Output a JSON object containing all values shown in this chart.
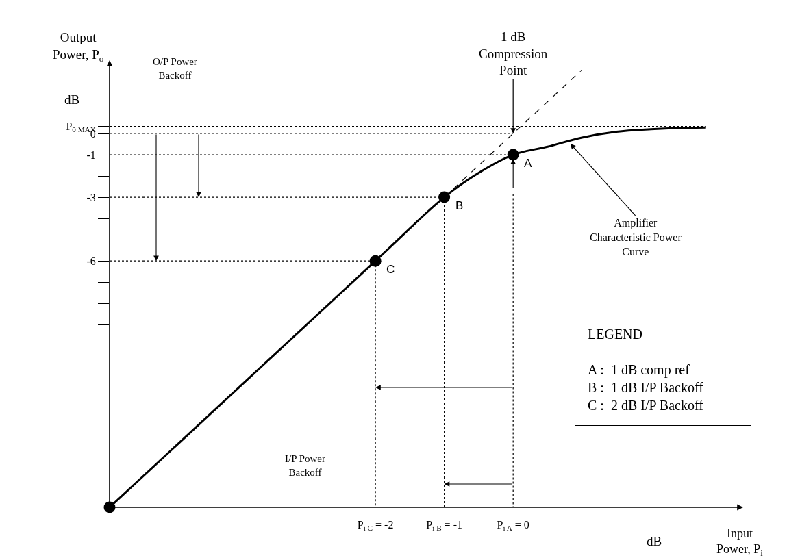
{
  "chart_data": {
    "type": "line",
    "xlabel": "Input Power, P$_{i}$",
    "ylabel": "Output Power, P$_{o}$",
    "xlim": [
      -5.86,
      3.34
    ],
    "ylim": [
      -17.6,
      3.45
    ],
    "xticks": [
      {
        "value": -2,
        "label": "P$_{i C}$ = -2"
      },
      {
        "value": -1,
        "label": "P$_{i B}$ = -1"
      },
      {
        "value": 0,
        "label": "P$_{i A}$ = 0"
      }
    ],
    "yticks": [
      {
        "value": 0.34,
        "label": "P$_{0 MAX}$"
      },
      0,
      -1,
      {
        "value": -2,
        "label": null
      },
      -3,
      {
        "value": -4,
        "label": null
      },
      {
        "value": -5,
        "label": null
      },
      -6,
      {
        "value": -7,
        "label": null
      },
      {
        "value": -8,
        "label": null
      },
      {
        "value": -9,
        "label": null
      }
    ],
    "series": [
      {
        "color": "#000000",
        "line_style": "solid",
        "x": [
          -5.86,
          -2,
          -1,
          -0.5,
          0,
          0.5,
          1,
          1.5,
          2,
          2.5,
          2.8
        ],
        "values": [
          -17.6,
          -6,
          -3,
          -1.85,
          -1,
          -0.62,
          -0.19,
          0.08,
          0.2,
          0.27,
          0.28
        ]
      },
      {
        "type": "scatter",
        "color": "#000000",
        "marker": "circle",
        "x": [
          -5.86,
          -2,
          -1,
          0
        ],
        "values": [
          -17.6,
          -6,
          -3,
          -1
        ]
      },
      {
        "color": "#000000",
        "line_style": "dashed",
        "x": [
          -1,
          1
        ],
        "values": [
          -3,
          3
        ]
      },
      {
        "color": "#000000",
        "line_style": "dotted",
        "x": [
          -5.86,
          2.8
        ],
        "values": [
          0.34,
          0.34
        ]
      },
      {
        "color": "#000000",
        "line_style": "dotted",
        "x": [
          -5.86,
          0
        ],
        "values": [
          0,
          0
        ]
      },
      {
        "color": "#000000",
        "line_style": "dotted",
        "x": [
          -5.86,
          0
        ],
        "values": [
          -1,
          -1
        ]
      },
      {
        "color": "#000000",
        "line_style": "dotted",
        "x": [
          -5.86,
          -1
        ],
        "values": [
          -3,
          -3
        ]
      },
      {
        "color": "#000000",
        "line_style": "dotted",
        "x": [
          -5.86,
          -2
        ],
        "values": [
          -6,
          -6
        ]
      },
      {
        "color": "#000000",
        "line_style": "dotted",
        "x": [
          -2,
          -2
        ],
        "values": [
          -6,
          -17.6
        ]
      },
      {
        "color": "#000000",
        "line_style": "dotted",
        "x": [
          -1,
          -1
        ],
        "values": [
          -3,
          -17.6
        ]
      },
      {
        "color": "#000000",
        "line_style": "dotted",
        "x": [
          0,
          0
        ],
        "values": [
          -2.85,
          -17.6
        ]
      }
    ],
    "annotations": [
      {
        "text": "1 dB\nCompression\nPoint",
        "x": 0,
        "y": 0
      },
      {
        "text": "A",
        "x": 0,
        "y": -1
      },
      {
        "text": "B",
        "x": -1,
        "y": -3
      },
      {
        "text": "C",
        "x": -2,
        "y": -6
      },
      {
        "text": "Amplifier\nCharacteristic Power\nCurve",
        "x": 0.83,
        "y": -0.48
      },
      "O/P Power\nBackoff",
      "I/P Power\nBackoff",
      "dB",
      "dB",
      "LEGEND\n\nA :  1 dB comp ref\nB :  1 dB I/P Backoff\nC :  2 dB I/P Backoff"
    ]
  }
}
